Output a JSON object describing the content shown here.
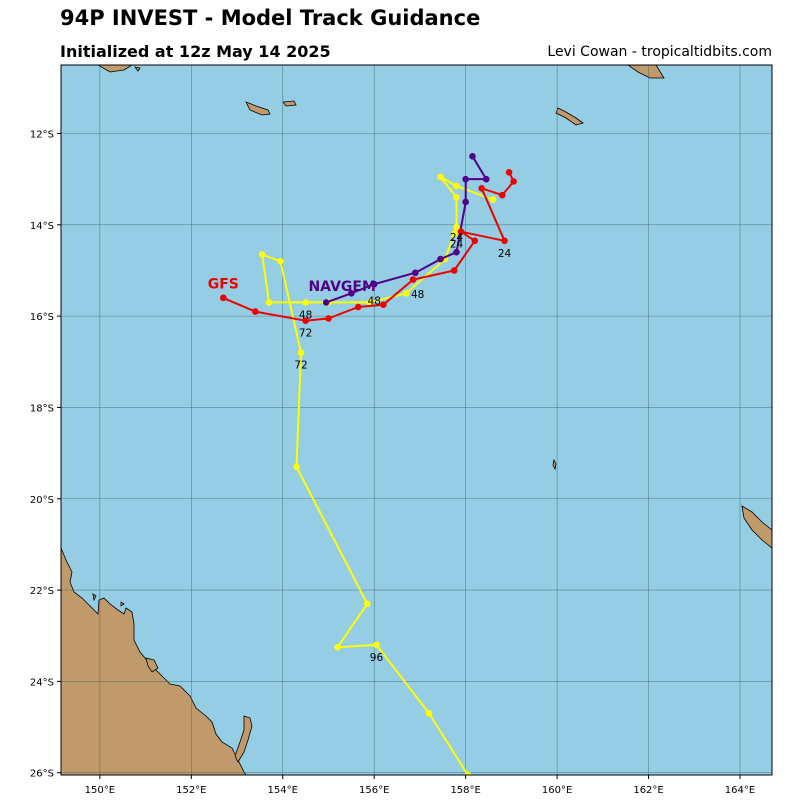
{
  "header": {
    "title": "94P INVEST - Model Track Guidance",
    "subtitle": "Initialized at 12z May 14 2025",
    "credit": "Levi Cowan - tropicaltidbits.com"
  },
  "map": {
    "lon_range": [
      149.15,
      164.7
    ],
    "lat_range": [
      -26.05,
      -10.5
    ],
    "colors": {
      "ocean": "#94cde4",
      "land": "#c09a6b",
      "grid": "#3f5f6f"
    },
    "x_ticks": [
      {
        "lon": 150,
        "label": "150°E"
      },
      {
        "lon": 152,
        "label": "152°E"
      },
      {
        "lon": 154,
        "label": "154°E"
      },
      {
        "lon": 156,
        "label": "156°E"
      },
      {
        "lon": 158,
        "label": "158°E"
      },
      {
        "lon": 160,
        "label": "160°E"
      },
      {
        "lon": 162,
        "label": "162°E"
      },
      {
        "lon": 164,
        "label": "164°E"
      }
    ],
    "y_ticks": [
      {
        "lat": -12,
        "label": "12°S"
      },
      {
        "lat": -14,
        "label": "14°S"
      },
      {
        "lat": -16,
        "label": "16°S"
      },
      {
        "lat": -18,
        "label": "18°S"
      },
      {
        "lat": -20,
        "label": "20°S"
      },
      {
        "lat": -22,
        "label": "22°S"
      },
      {
        "lat": -24,
        "label": "24°S"
      },
      {
        "lat": -26,
        "label": "26°S"
      }
    ]
  },
  "chart_data": {
    "type": "map-tracks",
    "series": [
      {
        "name": "",
        "color": "#ffff00",
        "points": [
          [
            158.6,
            -13.45
          ],
          [
            157.8,
            -13.15
          ],
          [
            157.45,
            -12.95
          ],
          [
            157.8,
            -13.4
          ],
          [
            157.8,
            -14.05
          ],
          [
            157.75,
            -14.2
          ],
          [
            157.55,
            -14.75
          ],
          [
            156.7,
            -15.5
          ],
          [
            155.9,
            -15.7
          ],
          [
            155.0,
            -15.7
          ],
          [
            154.5,
            -15.7
          ],
          [
            153.7,
            -15.7
          ],
          [
            153.55,
            -14.65
          ],
          [
            153.95,
            -14.8
          ],
          [
            154.4,
            -16.8
          ],
          [
            154.3,
            -19.3
          ],
          [
            155.85,
            -22.3
          ],
          [
            155.2,
            -23.25
          ],
          [
            156.05,
            -23.2
          ],
          [
            157.2,
            -24.7
          ],
          [
            158.05,
            -26.05
          ]
        ]
      },
      {
        "name": "NAVGEM",
        "color": "#52008a",
        "points": [
          [
            158.15,
            -12.5
          ],
          [
            158.45,
            -13.0
          ],
          [
            158.0,
            -13.0
          ],
          [
            158.0,
            -13.5
          ],
          [
            157.8,
            -14.6
          ],
          [
            157.45,
            -14.75
          ],
          [
            156.9,
            -15.05
          ],
          [
            156.0,
            -15.3
          ],
          [
            155.5,
            -15.5
          ],
          [
            154.95,
            -15.7
          ]
        ]
      },
      {
        "name": "GFS",
        "color": "#ee0000",
        "points": [
          [
            158.95,
            -12.85
          ],
          [
            159.05,
            -13.05
          ],
          [
            158.8,
            -13.35
          ],
          [
            158.35,
            -13.2
          ],
          [
            158.85,
            -14.35
          ],
          [
            157.9,
            -14.15
          ],
          [
            158.2,
            -14.35
          ],
          [
            157.75,
            -15.0
          ],
          [
            156.85,
            -15.2
          ],
          [
            156.2,
            -15.75
          ],
          [
            155.65,
            -15.8
          ],
          [
            155.0,
            -16.05
          ],
          [
            154.5,
            -16.1
          ],
          [
            153.4,
            -15.9
          ],
          [
            152.7,
            -15.6
          ]
        ]
      }
    ],
    "hour_labels": [
      {
        "text": "24",
        "lon": 157.8,
        "lat": -14.35
      },
      {
        "text": "24",
        "lon": 157.8,
        "lat": -14.5
      },
      {
        "text": "24",
        "lon": 158.85,
        "lat": -14.7
      },
      {
        "text": "48",
        "lon": 154.5,
        "lat": -16.05
      },
      {
        "text": "48",
        "lon": 156.0,
        "lat": -15.75
      },
      {
        "text": "48",
        "lon": 156.95,
        "lat": -15.6
      },
      {
        "text": "72",
        "lon": 154.5,
        "lat": -16.45
      },
      {
        "text": "72",
        "lon": 154.4,
        "lat": -17.15
      },
      {
        "text": "96",
        "lon": 156.05,
        "lat": -23.55
      }
    ],
    "model_labels": [
      {
        "text": "NAVGEM",
        "lon": 155.3,
        "lat": -15.45,
        "color": "#52008a"
      },
      {
        "text": "GFS",
        "lon": 152.7,
        "lat": -15.4,
        "color": "#ee0000"
      }
    ]
  }
}
